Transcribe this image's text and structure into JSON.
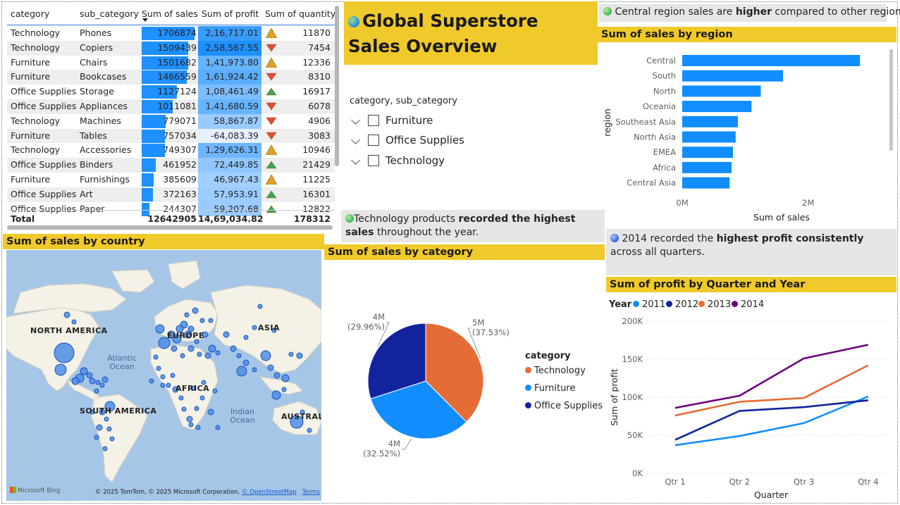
{
  "title": "Global Superstore Sales Overview",
  "colors": {
    "accent_yellow": "#f0c92a",
    "bar_blue": "#1e90ff",
    "technology": "#e66c37",
    "furniture": "#118dff",
    "office_supplies": "#12239e",
    "y2011": "#118dff",
    "y2012": "#12239e",
    "y2013": "#e66c37",
    "y2014": "#6b007b"
  },
  "table": {
    "headers": [
      "category",
      "sub_category",
      "Sum of sales",
      "Sum of profit",
      "Sum of quantity"
    ],
    "rows": [
      {
        "category": "Technology",
        "sub_category": "Phones",
        "sales": "1706874",
        "sales_value": 1706874,
        "profit": "2,16,717.01",
        "profit_value": 216717.01,
        "trend": "neutral",
        "quantity": "11870"
      },
      {
        "category": "Technology",
        "sub_category": "Copiers",
        "sales": "1509439",
        "sales_value": 1509439,
        "profit": "2,58,567.55",
        "profit_value": 258567.55,
        "trend": "down",
        "quantity": "7454"
      },
      {
        "category": "Furniture",
        "sub_category": "Chairs",
        "sales": "1501682",
        "sales_value": 1501682,
        "profit": "1,41,973.80",
        "profit_value": 141973.8,
        "trend": "neutral",
        "quantity": "12336"
      },
      {
        "category": "Furniture",
        "sub_category": "Bookcases",
        "sales": "1466559",
        "sales_value": 1466559,
        "profit": "1,61,924.42",
        "profit_value": 161924.42,
        "trend": "down",
        "quantity": "8310"
      },
      {
        "category": "Office Supplies",
        "sub_category": "Storage",
        "sales": "1127124",
        "sales_value": 1127124,
        "profit": "1,08,461.49",
        "profit_value": 108461.49,
        "trend": "up",
        "quantity": "16917"
      },
      {
        "category": "Office Supplies",
        "sub_category": "Appliances",
        "sales": "1011081",
        "sales_value": 1011081,
        "profit": "1,41,680.59",
        "profit_value": 141680.59,
        "trend": "down",
        "quantity": "6078"
      },
      {
        "category": "Technology",
        "sub_category": "Machines",
        "sales": "779071",
        "sales_value": 779071,
        "profit": "58,867.87",
        "profit_value": 58867.87,
        "trend": "down",
        "quantity": "4906"
      },
      {
        "category": "Furniture",
        "sub_category": "Tables",
        "sales": "757034",
        "sales_value": 757034,
        "profit": "-64,083.39",
        "profit_value": -64083.39,
        "trend": "down",
        "quantity": "3083"
      },
      {
        "category": "Technology",
        "sub_category": "Accessories",
        "sales": "749307",
        "sales_value": 749307,
        "profit": "1,29,626.31",
        "profit_value": 129626.31,
        "trend": "neutral",
        "quantity": "10946"
      },
      {
        "category": "Office Supplies",
        "sub_category": "Binders",
        "sales": "461952",
        "sales_value": 461952,
        "profit": "72,449.85",
        "profit_value": 72449.85,
        "trend": "up",
        "quantity": "21429"
      },
      {
        "category": "Furniture",
        "sub_category": "Furnishings",
        "sales": "385609",
        "sales_value": 385609,
        "profit": "46,967.43",
        "profit_value": 46967.43,
        "trend": "neutral",
        "quantity": "11225"
      },
      {
        "category": "Office Supplies",
        "sub_category": "Art",
        "sales": "372163",
        "sales_value": 372163,
        "profit": "57,953.91",
        "profit_value": 57953.91,
        "trend": "up",
        "quantity": "16301"
      },
      {
        "category": "Office Supplies",
        "sub_category": "Paper",
        "sales": "244307",
        "sales_value": 244307,
        "profit": "59,207.68",
        "profit_value": 59207.68,
        "trend": "up",
        "quantity": "12822"
      }
    ],
    "total": {
      "label": "Total",
      "sales": "12642905",
      "profit": "14,69,034.82",
      "quantity": "178312"
    }
  },
  "slicer": {
    "title": "category, sub_category",
    "items": [
      "Furniture",
      "Office Supplies",
      "Technology"
    ]
  },
  "insights": {
    "region": {
      "pre": "Central region sales are ",
      "bold": "higher",
      "post": " compared to other regions"
    },
    "category": {
      "pre": "Technology products ",
      "bold": "recorded the highest sales",
      "post": " throughout the year."
    },
    "profit": {
      "pre": "2014 recorded the ",
      "bold": "highest profit consistently",
      "post": " across all quarters."
    }
  },
  "map": {
    "header": "Sum of sales by country",
    "labels": {
      "north_america": "NORTH AMERICA",
      "europe": "EUROPE",
      "asia": "ASIA",
      "africa": "AFRICA",
      "south_america": "SOUTH AMERICA",
      "australia": "AUSTRALIA"
    },
    "oceans": {
      "atlantic_1": "Atlantic",
      "atlantic_2": "Ocean",
      "indian_1": "Indian",
      "indian_2": "Ocean"
    },
    "logo": "Microsoft Bing",
    "credit": "© 2025 TomTom, © 2025 Microsoft Corporation,",
    "osm": "© OpenStreetMap",
    "terms": "Terms"
  },
  "chart_data": [
    {
      "type": "bar",
      "orientation": "horizontal",
      "title": "Sum of sales by region",
      "xlabel": "Sum of sales",
      "ylabel": "region",
      "categories": [
        "Central",
        "South",
        "North",
        "Oceania",
        "Southeast Asia",
        "North Asia",
        "EMEA",
        "Africa",
        "Central Asia"
      ],
      "values": [
        2822303,
        1600907,
        1248166,
        1100185,
        884423,
        848310,
        806161,
        783773,
        752827
      ],
      "x_ticks": [
        "0M",
        "2M"
      ],
      "xlim": [
        0,
        3000000
      ]
    },
    {
      "type": "pie",
      "title": "Sum of sales by category",
      "legend_title": "category",
      "categories": [
        "Technology",
        "Furniture",
        "Office Supplies"
      ],
      "values": [
        37.53,
        32.52,
        29.96
      ],
      "labels": [
        {
          "value": "5M",
          "pct": "(37.53%)"
        },
        {
          "value": "4M",
          "pct": "(32.52%)"
        },
        {
          "value": "4M",
          "pct": "(29.96%)"
        }
      ],
      "legend": "right"
    },
    {
      "type": "line",
      "title": "Sum of profit by Quarter and Year",
      "legend_title": "Year",
      "xlabel": "Quarter",
      "ylabel": "Sum of profit",
      "categories": [
        "Qtr 1",
        "Qtr 2",
        "Qtr 3",
        "Qtr 4"
      ],
      "y_ticks": [
        "0K",
        "50K",
        "100K",
        "150K",
        "200K"
      ],
      "ylim": [
        0,
        200000
      ],
      "series": [
        {
          "name": "2011",
          "values": [
            37000,
            49000,
            66000,
            101000
          ]
        },
        {
          "name": "2012",
          "values": [
            44000,
            82000,
            87000,
            96000
          ]
        },
        {
          "name": "2013",
          "values": [
            76000,
            94000,
            99000,
            142000
          ]
        },
        {
          "name": "2014",
          "values": [
            86000,
            102000,
            151000,
            169000
          ]
        }
      ],
      "legend": "top-left"
    }
  ]
}
